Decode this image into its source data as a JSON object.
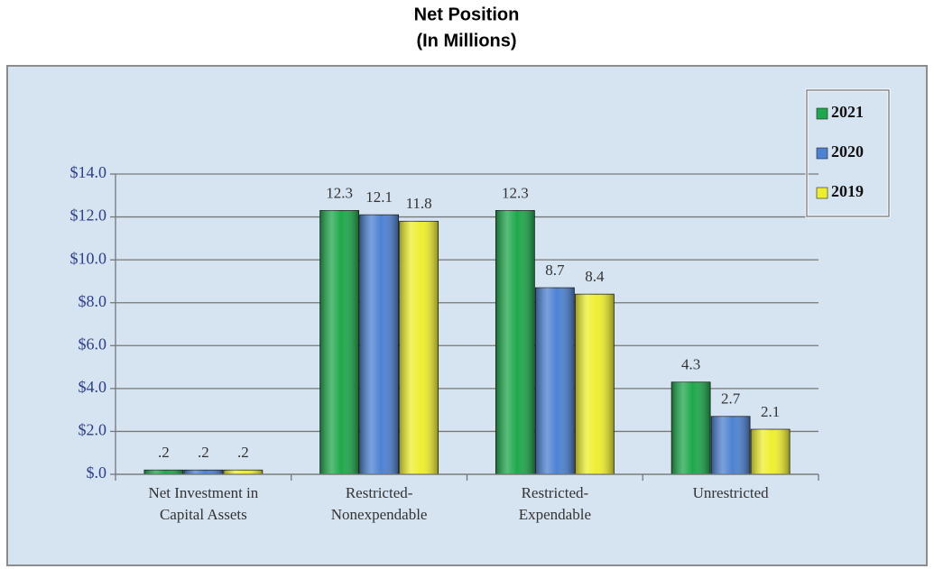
{
  "chart_data": {
    "type": "bar",
    "title": "Net Position",
    "subtitle": "(In Millions)",
    "categories": [
      "Net Investment in\nCapital Assets",
      "Restricted-\nNonexpendable",
      "Restricted-\nExpendable",
      "Unrestricted"
    ],
    "series": [
      {
        "name": "2021",
        "color": "#1fa84c",
        "values": [
          0.2,
          12.3,
          12.3,
          4.3
        ],
        "value_labels": [
          ".2",
          "12.3",
          "12.3",
          "4.3"
        ]
      },
      {
        "name": "2020",
        "color": "#4d82d2",
        "values": [
          0.2,
          12.1,
          8.7,
          2.7
        ],
        "value_labels": [
          ".2",
          "12.1",
          "8.7",
          "2.7"
        ]
      },
      {
        "name": "2019",
        "color": "#eeee30",
        "values": [
          0.2,
          11.8,
          8.4,
          2.1
        ],
        "value_labels": [
          ".2",
          "11.8",
          "8.4",
          "2.1"
        ]
      }
    ],
    "ylim": [
      0,
      14
    ],
    "yticks": [
      {
        "value": 0,
        "label": "$.0"
      },
      {
        "value": 2,
        "label": "$2.0"
      },
      {
        "value": 4,
        "label": "$4.0"
      },
      {
        "value": 6,
        "label": "$6.0"
      },
      {
        "value": 8,
        "label": "$8.0"
      },
      {
        "value": 10,
        "label": "$10.0"
      },
      {
        "value": 12,
        "label": "$12.0"
      },
      {
        "value": 14,
        "label": "$14.0"
      }
    ],
    "grid": true,
    "legend": "upper right"
  }
}
